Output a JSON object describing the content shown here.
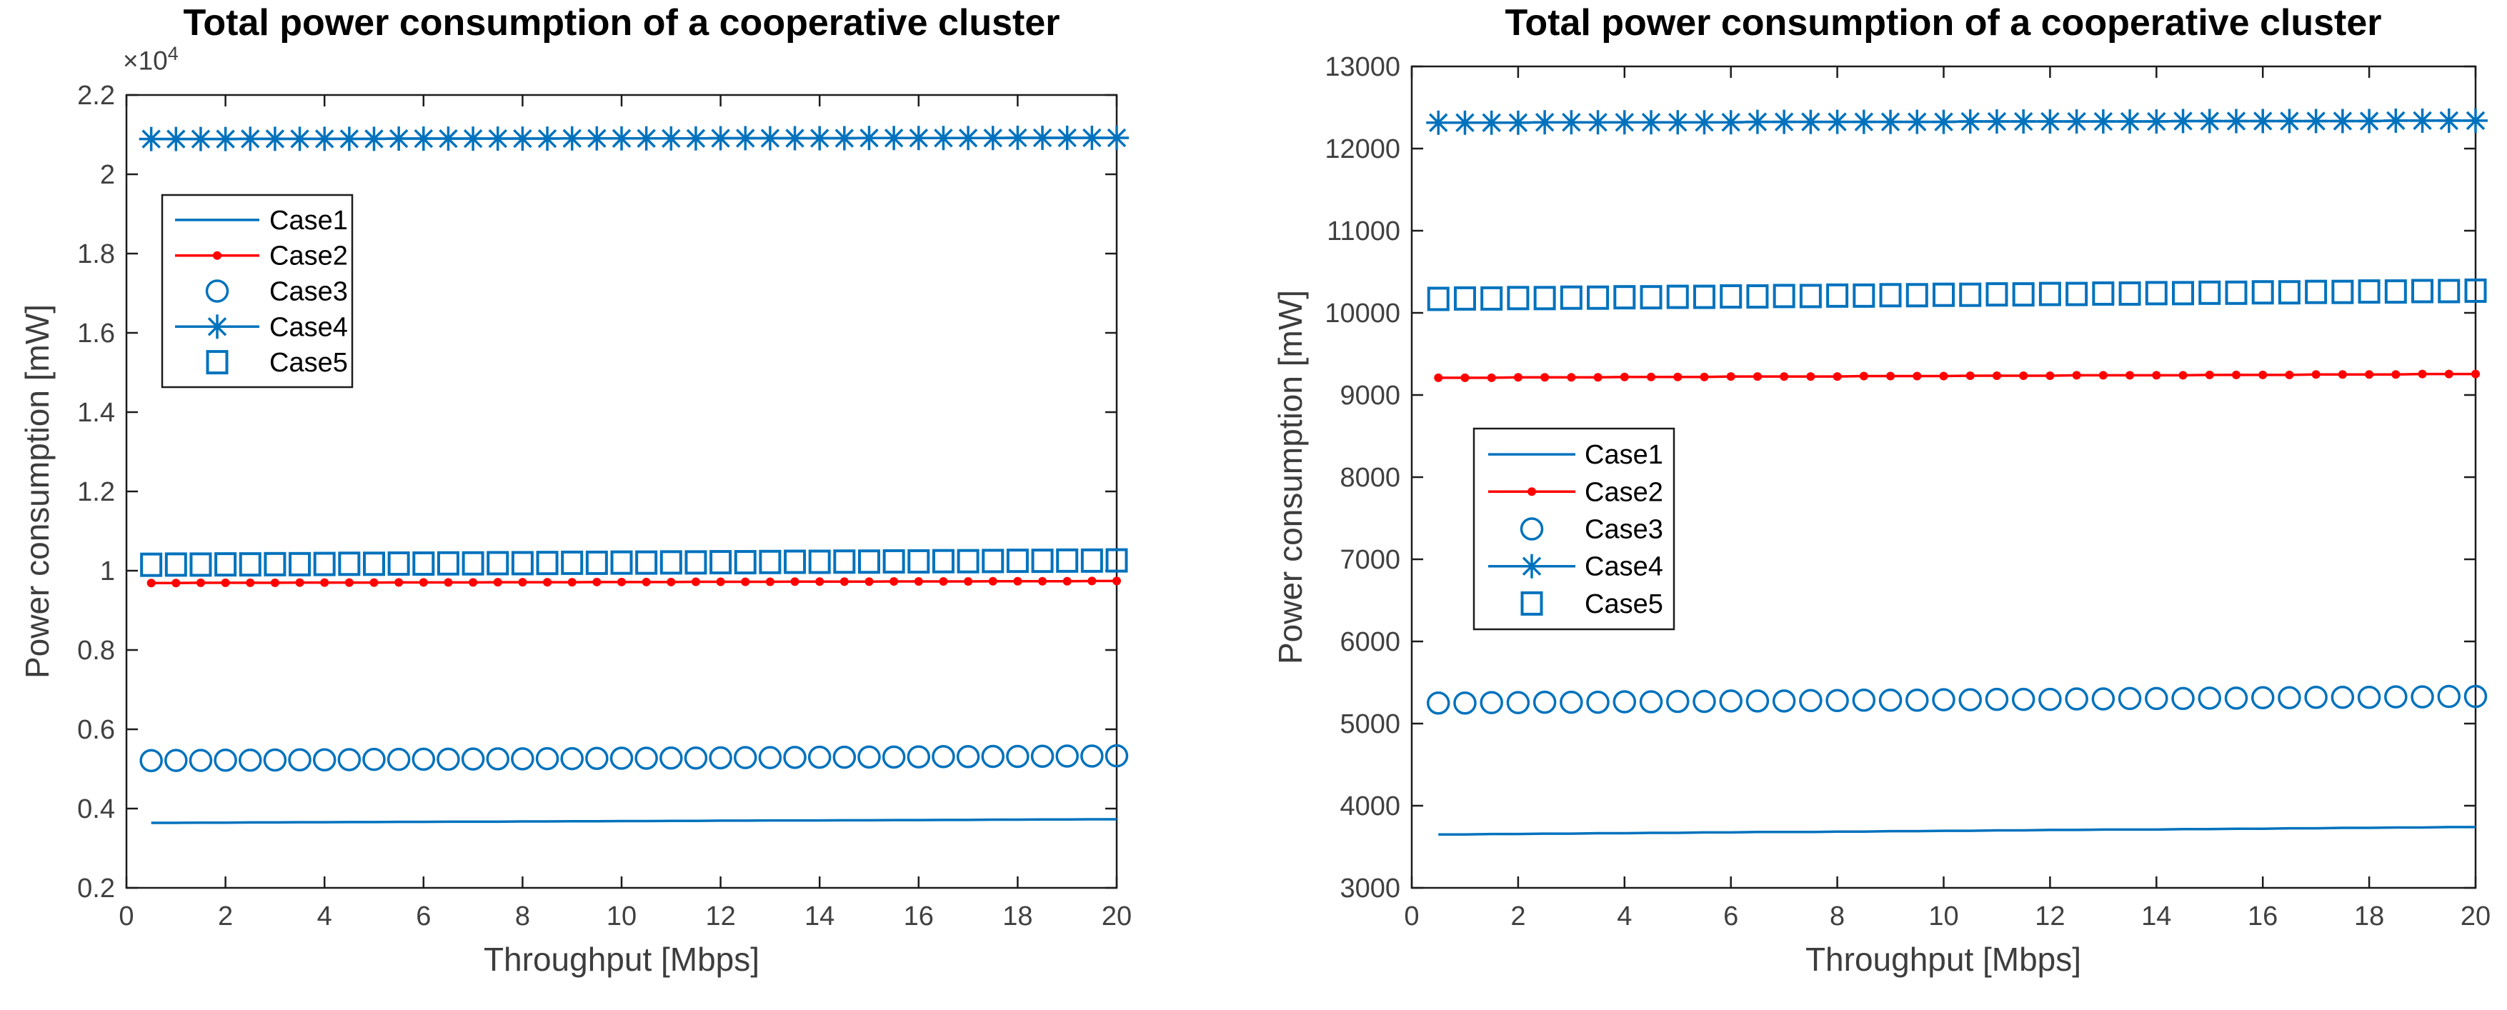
{
  "colors": {
    "series_blue": "#0072BD",
    "series_red": "#FF0000",
    "axis_line": "#1c1c1c",
    "tick_text": "#404040",
    "label_text": "#3d3d3d",
    "title_text": "#000000",
    "legend_border": "#1c1c1c",
    "background": "#ffffff"
  },
  "chart_data": [
    {
      "type": "line",
      "title": "Total power consumption of a cooperative cluster",
      "xlabel": "Throughput [Mbps]",
      "ylabel": "Power consumption [mW]",
      "y_exponent_base": "×10",
      "y_exponent_power": "4",
      "xlim": [
        0,
        20
      ],
      "ylim": [
        2000,
        22000
      ],
      "grid": false,
      "legend_position": "upper-left",
      "xticks": [
        0,
        2,
        4,
        6,
        8,
        10,
        12,
        14,
        16,
        18,
        20
      ],
      "xtick_labels": [
        "0",
        "2",
        "4",
        "6",
        "8",
        "10",
        "12",
        "14",
        "16",
        "18",
        "20"
      ],
      "yticks": [
        2000,
        4000,
        6000,
        8000,
        10000,
        12000,
        14000,
        16000,
        18000,
        20000,
        22000
      ],
      "ytick_labels": [
        "0.2",
        "0.4",
        "0.6",
        "0.8",
        "1",
        "1.2",
        "1.4",
        "1.6",
        "1.8",
        "2",
        "2.2"
      ],
      "x": [
        0.5,
        1,
        1.5,
        2,
        2.5,
        3,
        3.5,
        4,
        4.5,
        5,
        5.5,
        6,
        6.5,
        7,
        7.5,
        8,
        8.5,
        9,
        9.5,
        10,
        10.5,
        11,
        11.5,
        12,
        12.5,
        13,
        13.5,
        14,
        14.5,
        15,
        15.5,
        16,
        16.5,
        17,
        17.5,
        18,
        18.5,
        19,
        19.5,
        20
      ],
      "series": [
        {
          "name": "Case1",
          "color": "series_blue",
          "line": true,
          "marker": "none",
          "values": [
            3640,
            3640,
            3645,
            3645,
            3650,
            3650,
            3655,
            3655,
            3660,
            3660,
            3665,
            3665,
            3670,
            3670,
            3670,
            3675,
            3675,
            3680,
            3680,
            3685,
            3685,
            3690,
            3690,
            3695,
            3695,
            3700,
            3700,
            3700,
            3705,
            3705,
            3710,
            3710,
            3715,
            3715,
            3720,
            3720,
            3725,
            3725,
            3730,
            3730
          ]
        },
        {
          "name": "Case2",
          "color": "series_red",
          "line": true,
          "marker": "dot",
          "values": [
            9690,
            9690,
            9695,
            9695,
            9695,
            9695,
            9700,
            9700,
            9700,
            9700,
            9705,
            9705,
            9705,
            9705,
            9710,
            9710,
            9710,
            9710,
            9715,
            9715,
            9715,
            9715,
            9720,
            9720,
            9720,
            9720,
            9725,
            9725,
            9725,
            9725,
            9730,
            9730,
            9730,
            9730,
            9735,
            9735,
            9735,
            9735,
            9740,
            9740
          ]
        },
        {
          "name": "Case3",
          "color": "series_blue",
          "line": false,
          "marker": "circle",
          "values": [
            5210,
            5215,
            5215,
            5220,
            5220,
            5225,
            5230,
            5230,
            5235,
            5240,
            5240,
            5245,
            5245,
            5250,
            5255,
            5255,
            5260,
            5260,
            5265,
            5270,
            5270,
            5275,
            5275,
            5280,
            5285,
            5285,
            5290,
            5295,
            5295,
            5300,
            5300,
            5305,
            5310,
            5310,
            5315,
            5315,
            5320,
            5325,
            5325,
            5330
          ]
        },
        {
          "name": "Case4",
          "color": "series_blue",
          "line": true,
          "marker": "asterisk",
          "values": [
            20890,
            20890,
            20890,
            20890,
            20895,
            20895,
            20895,
            20895,
            20895,
            20895,
            20900,
            20900,
            20900,
            20900,
            20900,
            20900,
            20900,
            20905,
            20905,
            20905,
            20905,
            20905,
            20905,
            20910,
            20910,
            20910,
            20910,
            20910,
            20910,
            20915,
            20915,
            20915,
            20915,
            20915,
            20915,
            20920,
            20920,
            20920,
            20920,
            20920
          ]
        },
        {
          "name": "Case5",
          "color": "series_blue",
          "line": false,
          "marker": "square",
          "values": [
            10150,
            10155,
            10155,
            10160,
            10160,
            10165,
            10165,
            10170,
            10175,
            10175,
            10180,
            10180,
            10185,
            10185,
            10190,
            10190,
            10195,
            10200,
            10200,
            10205,
            10205,
            10210,
            10210,
            10215,
            10215,
            10220,
            10225,
            10225,
            10230,
            10230,
            10235,
            10235,
            10240,
            10240,
            10245,
            10250,
            10250,
            10255,
            10255,
            10260
          ]
        }
      ]
    },
    {
      "type": "line",
      "title": "Total power consumption of a cooperative cluster",
      "xlabel": "Throughput [Mbps]",
      "ylabel": "Power consumption [mW]",
      "xlim": [
        0,
        20
      ],
      "ylim": [
        3000,
        13000
      ],
      "grid": false,
      "legend_position": "middle-left",
      "xticks": [
        0,
        2,
        4,
        6,
        8,
        10,
        12,
        14,
        16,
        18,
        20
      ],
      "xtick_labels": [
        "0",
        "2",
        "4",
        "6",
        "8",
        "10",
        "12",
        "14",
        "16",
        "18",
        "20"
      ],
      "yticks": [
        3000,
        4000,
        5000,
        6000,
        7000,
        8000,
        9000,
        10000,
        11000,
        12000,
        13000
      ],
      "ytick_labels": [
        "3000",
        "4000",
        "5000",
        "6000",
        "7000",
        "8000",
        "9000",
        "10000",
        "11000",
        "12000",
        "13000"
      ],
      "x": [
        0.5,
        1,
        1.5,
        2,
        2.5,
        3,
        3.5,
        4,
        4.5,
        5,
        5.5,
        6,
        6.5,
        7,
        7.5,
        8,
        8.5,
        9,
        9.5,
        10,
        10.5,
        11,
        11.5,
        12,
        12.5,
        13,
        13.5,
        14,
        14.5,
        15,
        15.5,
        16,
        16.5,
        17,
        17.5,
        18,
        18.5,
        19,
        19.5,
        20
      ],
      "series": [
        {
          "name": "Case1",
          "color": "series_blue",
          "line": true,
          "marker": "none",
          "values": [
            3650,
            3650,
            3655,
            3655,
            3660,
            3660,
            3665,
            3665,
            3670,
            3670,
            3675,
            3675,
            3680,
            3680,
            3680,
            3685,
            3685,
            3690,
            3690,
            3695,
            3695,
            3700,
            3700,
            3705,
            3705,
            3710,
            3710,
            3710,
            3715,
            3715,
            3720,
            3720,
            3725,
            3725,
            3730,
            3730,
            3735,
            3735,
            3740,
            3740
          ]
        },
        {
          "name": "Case2",
          "color": "series_red",
          "line": true,
          "marker": "dot",
          "values": [
            9210,
            9210,
            9210,
            9215,
            9215,
            9215,
            9215,
            9220,
            9220,
            9220,
            9220,
            9225,
            9225,
            9225,
            9225,
            9225,
            9230,
            9230,
            9230,
            9230,
            9235,
            9235,
            9235,
            9235,
            9240,
            9240,
            9240,
            9240,
            9240,
            9245,
            9245,
            9245,
            9245,
            9250,
            9250,
            9250,
            9250,
            9255,
            9255,
            9255
          ]
        },
        {
          "name": "Case3",
          "color": "series_blue",
          "line": false,
          "marker": "circle",
          "values": [
            5250,
            5250,
            5255,
            5255,
            5260,
            5260,
            5260,
            5265,
            5265,
            5270,
            5270,
            5275,
            5275,
            5275,
            5280,
            5280,
            5285,
            5285,
            5285,
            5290,
            5290,
            5295,
            5295,
            5295,
            5300,
            5300,
            5305,
            5305,
            5305,
            5310,
            5310,
            5315,
            5315,
            5320,
            5320,
            5320,
            5325,
            5325,
            5330,
            5330
          ]
        },
        {
          "name": "Case4",
          "color": "series_blue",
          "line": true,
          "marker": "asterisk",
          "values": [
            12315,
            12315,
            12315,
            12315,
            12320,
            12320,
            12320,
            12320,
            12320,
            12320,
            12320,
            12320,
            12325,
            12325,
            12325,
            12325,
            12325,
            12325,
            12325,
            12325,
            12330,
            12330,
            12330,
            12330,
            12330,
            12330,
            12330,
            12330,
            12335,
            12335,
            12335,
            12335,
            12335,
            12335,
            12335,
            12335,
            12340,
            12340,
            12340,
            12340
          ]
        },
        {
          "name": "Case5",
          "color": "series_blue",
          "line": false,
          "marker": "square",
          "values": [
            10170,
            10175,
            10175,
            10180,
            10180,
            10185,
            10185,
            10190,
            10190,
            10195,
            10195,
            10200,
            10200,
            10205,
            10205,
            10210,
            10210,
            10215,
            10215,
            10220,
            10220,
            10225,
            10225,
            10230,
            10230,
            10235,
            10235,
            10240,
            10240,
            10245,
            10245,
            10250,
            10250,
            10255,
            10255,
            10260,
            10260,
            10265,
            10265,
            10270
          ]
        }
      ]
    }
  ]
}
